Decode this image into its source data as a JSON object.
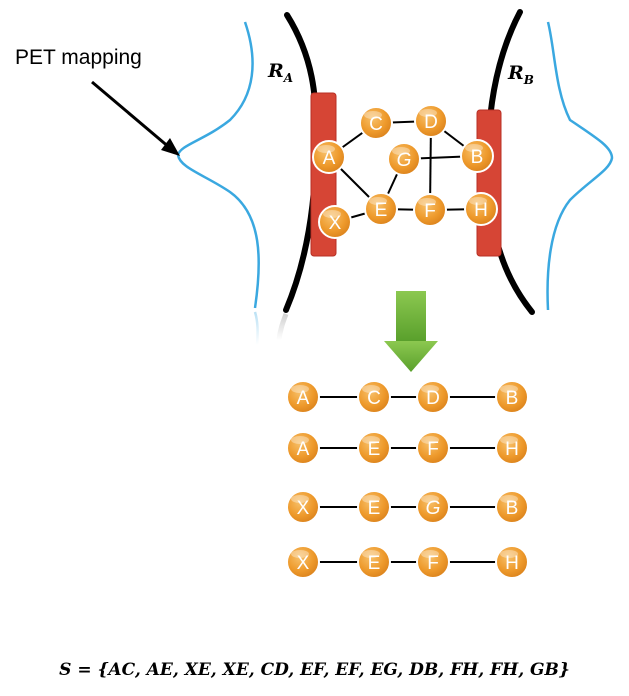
{
  "annotation": {
    "label": "PET mapping"
  },
  "regions": {
    "left": {
      "main": "R",
      "sub": "A"
    },
    "right": {
      "main": "R",
      "sub": "B"
    }
  },
  "colors": {
    "node_fill": "#f0a030",
    "node_stroke": "#ffffff",
    "bar": "#d64535",
    "curve": "#3aa8e0",
    "arrow": "#6ab23a"
  },
  "network": {
    "nodes": [
      "A",
      "C",
      "D",
      "G",
      "B",
      "X",
      "E",
      "F",
      "H"
    ],
    "edges": [
      [
        "A",
        "C"
      ],
      [
        "C",
        "D"
      ],
      [
        "D",
        "B"
      ],
      [
        "A",
        "E"
      ],
      [
        "X",
        "E"
      ],
      [
        "E",
        "F"
      ],
      [
        "F",
        "H"
      ],
      [
        "E",
        "G"
      ],
      [
        "G",
        "B"
      ],
      [
        "F",
        "D"
      ]
    ]
  },
  "paths": [
    [
      "A",
      "C",
      "D",
      "B"
    ],
    [
      "A",
      "E",
      "F",
      "H"
    ],
    [
      "X",
      "E",
      "G",
      "B"
    ],
    [
      "X",
      "E",
      "F",
      "H"
    ]
  ],
  "formula": "S = {AC, AE, XE, XE, CD, EF, EF, EG, DB, FH, FH, GB}"
}
